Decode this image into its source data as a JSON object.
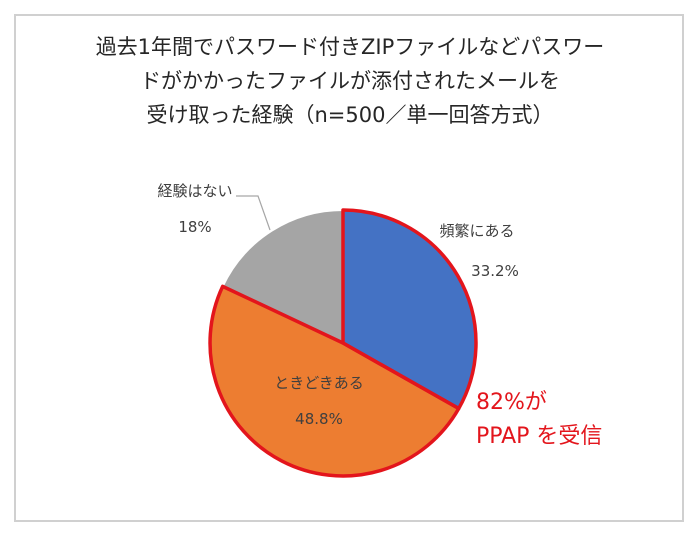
{
  "chart_data": {
    "type": "pie",
    "title_lines": [
      "過去1年間でパスワード付きZIPファイルなどパスワー",
      "ドがかかったファイルが添付されたメールを",
      "受け取った経験（n=500／単一回答方式）"
    ],
    "slices": [
      {
        "label": "頻繁にある",
        "value": 33.2,
        "display": "33.2%",
        "color": "#4472c4"
      },
      {
        "label": "ときどきある",
        "value": 48.8,
        "display": "48.8%",
        "color": "#ed7d31"
      },
      {
        "label": "経験はない",
        "value": 18,
        "display": "18%",
        "color": "#a5a5a5"
      }
    ],
    "highlight": {
      "color": "#e3151c",
      "line1": "82%が",
      "line2": "PPAP を受信"
    }
  }
}
